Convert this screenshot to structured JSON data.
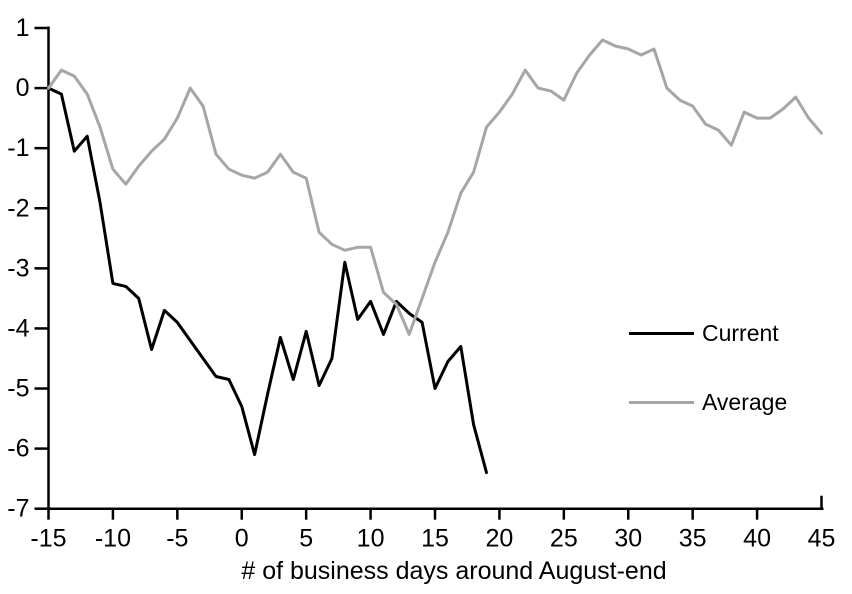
{
  "chart_data": {
    "type": "line",
    "title": "",
    "xlabel": "# of business days around August-end",
    "ylabel": "",
    "xlim": [
      -15,
      45
    ],
    "ylim": [
      -7,
      1
    ],
    "x_ticks": [
      -15,
      -10,
      -5,
      0,
      5,
      10,
      15,
      20,
      25,
      30,
      35,
      40,
      45
    ],
    "y_ticks": [
      1,
      0,
      -1,
      -2,
      -3,
      -4,
      -5,
      -6,
      -7
    ],
    "grid": false,
    "legend_position": "right-middle",
    "axis_color": "#000000",
    "background_color": "#ffffff",
    "series": [
      {
        "name": "Current",
        "color": "#000000",
        "x": [
          -15,
          -14,
          -13,
          -12,
          -11,
          -10,
          -9,
          -8,
          -7,
          -6,
          -5,
          -4,
          -3,
          -2,
          -1,
          0,
          1,
          2,
          3,
          4,
          5,
          6,
          7,
          8,
          9,
          10,
          11,
          12,
          13,
          14,
          15,
          16,
          17,
          18,
          19
        ],
        "values": [
          0,
          -0.1,
          -1.05,
          -0.8,
          -1.9,
          -3.25,
          -3.3,
          -3.5,
          -4.35,
          -3.7,
          -3.9,
          -4.2,
          -4.5,
          -4.8,
          -4.85,
          -5.3,
          -6.1,
          -5.1,
          -4.15,
          -4.85,
          -4.05,
          -4.95,
          -4.5,
          -2.9,
          -3.85,
          -3.55,
          -4.1,
          -3.55,
          -3.75,
          -3.9,
          -5.0,
          -4.55,
          -4.3,
          -5.6,
          -6.4
        ]
      },
      {
        "name": "Average",
        "color": "#a6a6a6",
        "x": [
          -15,
          -14,
          -13,
          -12,
          -11,
          -10,
          -9,
          -8,
          -7,
          -6,
          -5,
          -4,
          -3,
          -2,
          -1,
          0,
          1,
          2,
          3,
          4,
          5,
          6,
          7,
          8,
          9,
          10,
          11,
          12,
          13,
          14,
          15,
          16,
          17,
          18,
          19,
          20,
          21,
          22,
          23,
          24,
          25,
          26,
          27,
          28,
          29,
          30,
          31,
          32,
          33,
          34,
          35,
          36,
          37,
          38,
          39,
          40,
          41,
          42,
          43,
          44,
          45
        ],
        "values": [
          0,
          0.3,
          0.2,
          -0.1,
          -0.65,
          -1.35,
          -1.6,
          -1.3,
          -1.05,
          -0.85,
          -0.5,
          0,
          -0.3,
          -1.1,
          -1.35,
          -1.45,
          -1.5,
          -1.4,
          -1.1,
          -1.4,
          -1.5,
          -2.4,
          -2.6,
          -2.7,
          -2.65,
          -2.65,
          -3.4,
          -3.6,
          -4.1,
          -3.5,
          -2.9,
          -2.4,
          -1.75,
          -1.4,
          -0.65,
          -0.4,
          -0.1,
          0.3,
          0,
          -0.05,
          -0.2,
          0.25,
          0.55,
          0.8,
          0.7,
          0.65,
          0.55,
          0.65,
          0,
          -0.2,
          -0.3,
          -0.6,
          -0.7,
          -0.95,
          -0.4,
          -0.5,
          -0.5,
          -0.35,
          -0.15,
          -0.5,
          -0.75
        ]
      }
    ]
  }
}
